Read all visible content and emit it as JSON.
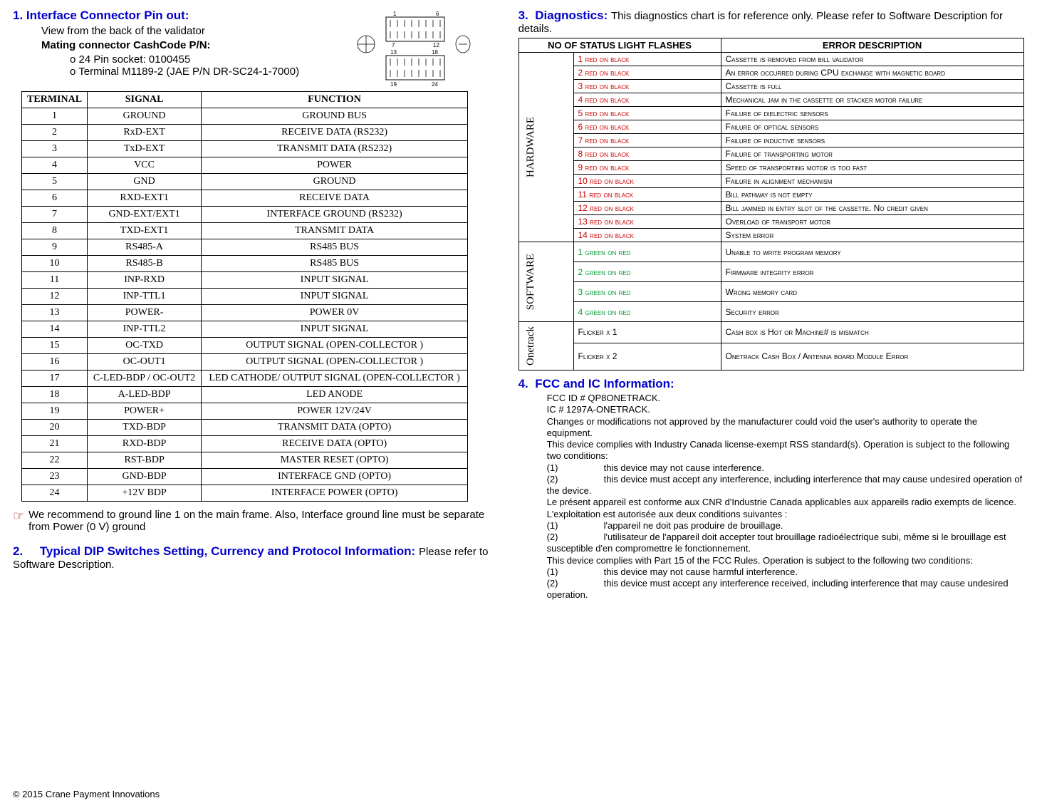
{
  "left": {
    "section1": {
      "num": "1.",
      "title": "Interface Connector Pin out:",
      "line1": "View from the back of the validator",
      "line2": "Mating connector CashCode P/N:",
      "bullet1": "24 Pin socket: 0100455",
      "bullet2": "Terminal M1189-2 (JAE P/N DR-SC24-1-7000)"
    },
    "pin_table": {
      "headers": {
        "c1": "TERMINAL",
        "c2": "SIGNAL",
        "c3": "FUNCTION"
      },
      "rows": [
        {
          "t": "1",
          "s": "GROUND",
          "f": "GROUND BUS"
        },
        {
          "t": "2",
          "s": "RxD-EXT",
          "f": "RECEIVE DATA (RS232)"
        },
        {
          "t": "3",
          "s": "TxD-EXT",
          "f": "TRANSMIT DATA (RS232)"
        },
        {
          "t": "4",
          "s": "VCC",
          "f": "POWER"
        },
        {
          "t": "5",
          "s": "GND",
          "f": "GROUND"
        },
        {
          "t": "6",
          "s": "RXD-EXT1",
          "f": "RECEIVE DATA"
        },
        {
          "t": "7",
          "s": "GND-EXT/EXT1",
          "f": "INTERFACE GROUND (RS232)"
        },
        {
          "t": "8",
          "s": "TXD-EXT1",
          "f": "TRANSMIT DATA"
        },
        {
          "t": "9",
          "s": "RS485-A",
          "f": "RS485 BUS"
        },
        {
          "t": "10",
          "s": "RS485-B",
          "f": "RS485 BUS"
        },
        {
          "t": "11",
          "s": "INP-RXD",
          "f": "INPUT SIGNAL"
        },
        {
          "t": "12",
          "s": "INP-TTL1",
          "f": "INPUT SIGNAL"
        },
        {
          "t": "13",
          "s": "POWER-",
          "f": "POWER 0V"
        },
        {
          "t": "14",
          "s": "INP-TTL2",
          "f": "INPUT SIGNAL"
        },
        {
          "t": "15",
          "s": "OC-TXD",
          "f": "OUTPUT SIGNAL (OPEN-COLLECTOR )"
        },
        {
          "t": "16",
          "s": "OC-OUT1",
          "f": "OUTPUT SIGNAL (OPEN-COLLECTOR )"
        },
        {
          "t": "17",
          "s": "C-LED-BDP / OC-OUT2",
          "f": "LED CATHODE/ OUTPUT SIGNAL (OPEN-COLLECTOR )"
        },
        {
          "t": "18",
          "s": "A-LED-BDP",
          "f": "LED ANODE"
        },
        {
          "t": "19",
          "s": "POWER+",
          "f": "POWER 12V/24V"
        },
        {
          "t": "20",
          "s": "TXD-BDP",
          "f": "TRANSMIT DATA (OPTO)"
        },
        {
          "t": "21",
          "s": "RXD-BDP",
          "f": "RECEIVE DATA (OPTO)"
        },
        {
          "t": "22",
          "s": "RST-BDP",
          "f": "MASTER RESET  (OPTO)"
        },
        {
          "t": "23",
          "s": "GND-BDP",
          "f": "INTERFACE GND (OPTO)"
        },
        {
          "t": "24",
          "s": "+12V BDP",
          "f": "INTERFACE POWER (OPTO)"
        }
      ]
    },
    "note": "We recommend to ground line 1 on the main frame. Also, Interface ground line must be separate from Power (0 V) ground",
    "section2": {
      "num": "2.",
      "title": "Typical DIP Switches Setting, Currency and Protocol Information:",
      "body": "  Please refer to Software Description."
    }
  },
  "right": {
    "section3": {
      "num": "3.",
      "title": "Diagnostics:",
      "body": " This diagnostics chart is for reference only. Please refer to Software Description for details."
    },
    "diag_table": {
      "h1": "NO OF STATUS LIGHT FLASHES",
      "h2": "ERROR DESCRIPTION",
      "cat_hw": "HARDWARE",
      "cat_sw": "SOFTWARE",
      "cat_ot": "Onetrack",
      "hw": [
        {
          "c": "1 red on black",
          "d": "Cassette is removed from bill validator"
        },
        {
          "c": "2 red on black",
          "d": "An error occurred during CPU exchange with magnetic board"
        },
        {
          "c": "3 red on black",
          "d": "Cassette is full"
        },
        {
          "c": "4 red on black",
          "d": "Mechanical jam in the cassette or stacker motor failure"
        },
        {
          "c": "5 red on black",
          "d": "Failure of dielectric sensors"
        },
        {
          "c": "6 red on black",
          "d": "Failure of optical sensors"
        },
        {
          "c": "7 red on black",
          "d": "Failure of inductive sensors"
        },
        {
          "c": "8 red on black",
          "d": "Failure of transporting motor"
        },
        {
          "c": "9 red on black",
          "d": "Speed of transporting motor is too fast"
        },
        {
          "c": "10 red on black",
          "d": "Failure in alignment mechanism"
        },
        {
          "c": "11 red on black",
          "d": "Bill pathway is not empty"
        },
        {
          "c": "12 red on black",
          "d": "Bill jammed in entry slot of the cassette. No credit given"
        },
        {
          "c": "13 red on black",
          "d": "Overload of transport motor"
        },
        {
          "c": "14 red on black",
          "d": "System error"
        }
      ],
      "sw": [
        {
          "c": "1 green on red",
          "d": "Unable to write program memory"
        },
        {
          "c": "2 green on red",
          "d": "Firmware integrity error"
        },
        {
          "c": "3 green on red",
          "d": "Wrong memory card"
        },
        {
          "c": "4 green on red",
          "d": "Security error"
        }
      ],
      "ot": [
        {
          "c": "Flicker x 1",
          "d": "Cash box is Hot or Machine# is mismatch"
        },
        {
          "c": "Flicker x 2",
          "d": "Onetrack Cash Box / Antenna board Module Error"
        }
      ]
    },
    "section4": {
      "num": "4.",
      "title": "FCC and IC Information:",
      "l1": "FCC ID # QP8ONETRACK.",
      "l2": "IC # 1297A-ONETRACK.",
      "l3": "Changes or modifications not approved by the manufacturer could void the user's authority to operate the equipment.",
      "l4": "This device complies with Industry Canada license-exempt RSS standard(s). Operation is subject to the following two conditions:",
      "l4a": "this device may not cause interference.",
      "l4b": "this device must accept any interference, including interference that may cause undesired operation of the device.",
      "l5": "Le présent appareil est conforme aux CNR d'Industrie Canada applicables aux appareils radio exempts de licence. L'exploitation est autorisée aux deux conditions suivantes :",
      "l5a": "l'appareil ne doit pas produire de brouillage.",
      "l5b": "l'utilisateur de l'appareil doit accepter tout brouillage radioélectrique subi, même si le brouillage est susceptible d'en compromettre le fonctionnement.",
      "l6": "This device complies with Part 15 of the FCC Rules. Operation is subject to the following two conditions:",
      "l6a": "this device may not cause harmful interference.",
      "l6b": "this device must accept any interference received, including interference that may cause undesired operation."
    }
  },
  "footer": "© 2015 Crane Payment Innovations",
  "diagram": {
    "p1": "1",
    "p6": "6",
    "p7": "7",
    "p12": "12",
    "p13": "13",
    "p18": "18",
    "p19": "19",
    "p24": "24"
  }
}
